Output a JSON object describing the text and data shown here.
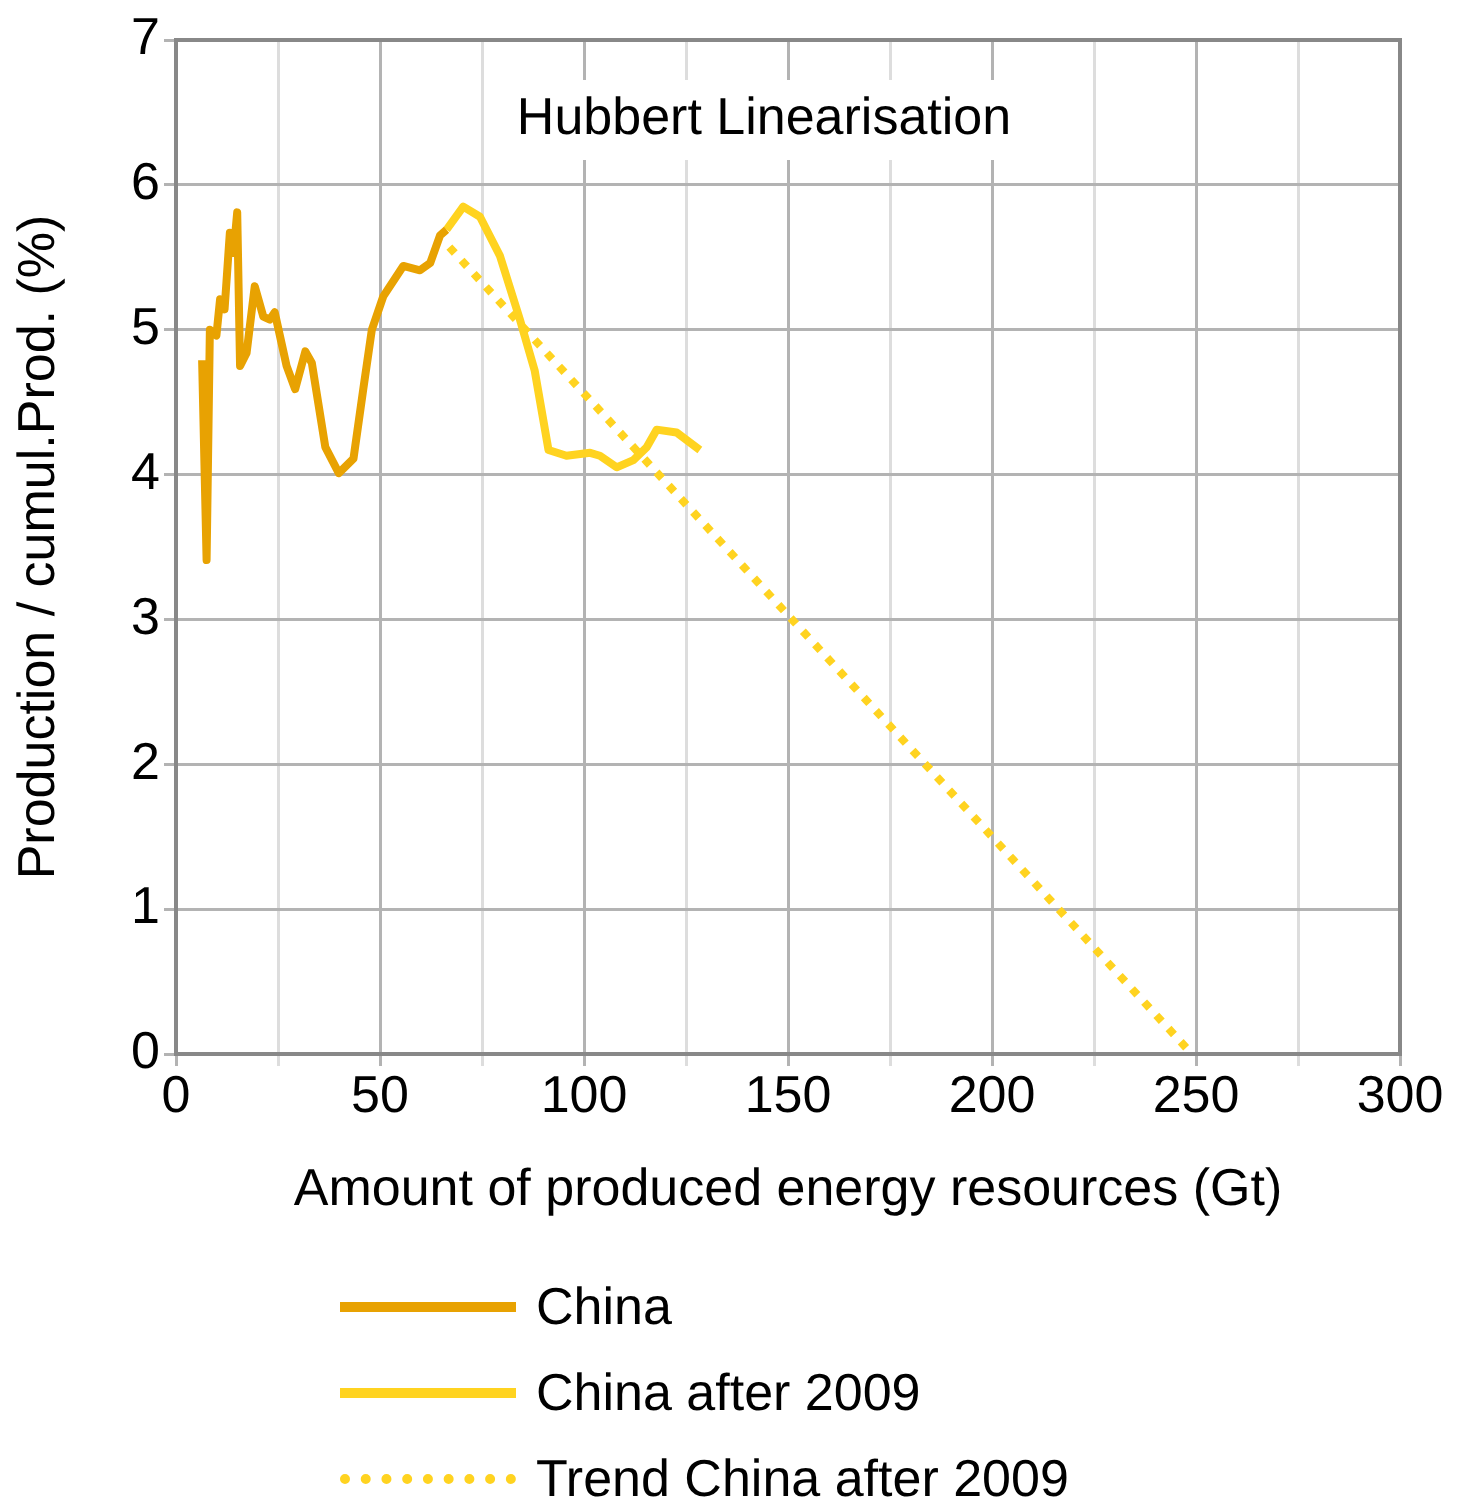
{
  "chart_data": {
    "type": "line",
    "title": "Hubbert Linearisation",
    "xlabel": "Amount of produced energy resources (Gt)",
    "ylabel": "Production / cumul.Prod. (%)",
    "xlim": [
      0,
      300
    ],
    "ylim": [
      0,
      7
    ],
    "xticks": [
      0,
      {
        "value": 25,
        "label": null
      },
      50,
      {
        "value": 75,
        "label": null
      },
      100,
      {
        "value": 125,
        "label": null
      },
      150,
      {
        "value": 175,
        "label": null
      },
      200,
      {
        "value": 225,
        "label": null
      },
      250,
      {
        "value": 275,
        "label": null
      },
      300
    ],
    "yticks": [
      0,
      1,
      2,
      3,
      4,
      5,
      6,
      7
    ],
    "grid": true,
    "legend": "bottom",
    "marker": "none",
    "series": [
      {
        "name": "China",
        "color": "#e8a202",
        "line_style": "solid",
        "x": [
          6.4,
          7.5,
          8.3,
          9.9,
          10.8,
          11.9,
          13.2,
          14.1,
          15.0,
          15.7,
          17.3,
          19.3,
          21.4,
          23,
          24.2,
          27.1,
          29.2,
          31.7,
          33.3,
          36.6,
          39.9,
          43.5,
          45.9,
          48,
          50.8,
          55.7,
          59.8,
          62.3,
          64.7,
          66.3
        ],
        "values": [
          4.79,
          3.41,
          5.0,
          4.96,
          5.21,
          5.14,
          5.67,
          5.53,
          5.81,
          4.75,
          4.84,
          5.3,
          5.09,
          5.07,
          5.12,
          4.75,
          4.59,
          4.85,
          4.77,
          4.19,
          4.01,
          4.11,
          4.59,
          5.0,
          5.23,
          5.44,
          5.41,
          5.46,
          5.65,
          5.69
        ]
      },
      {
        "name": "China after 2009",
        "color": "#ffd320",
        "line_style": "solid",
        "x": [
          66.3,
          70.4,
          74.5,
          79.4,
          84.3,
          87.9,
          91.3,
          95.7,
          101.5,
          103.9,
          108,
          112.1,
          115.4,
          117.8,
          122.7,
          128.4
        ],
        "values": [
          5.69,
          5.85,
          5.78,
          5.51,
          5.07,
          4.72,
          4.17,
          4.13,
          4.15,
          4.13,
          4.05,
          4.1,
          4.19,
          4.31,
          4.29,
          4.17
        ]
      },
      {
        "name": "Trend China after 2009",
        "color": "#ffd320",
        "line_style": "dotted",
        "x": [
          67,
          249
        ],
        "values": [
          5.57,
          0
        ]
      }
    ]
  }
}
